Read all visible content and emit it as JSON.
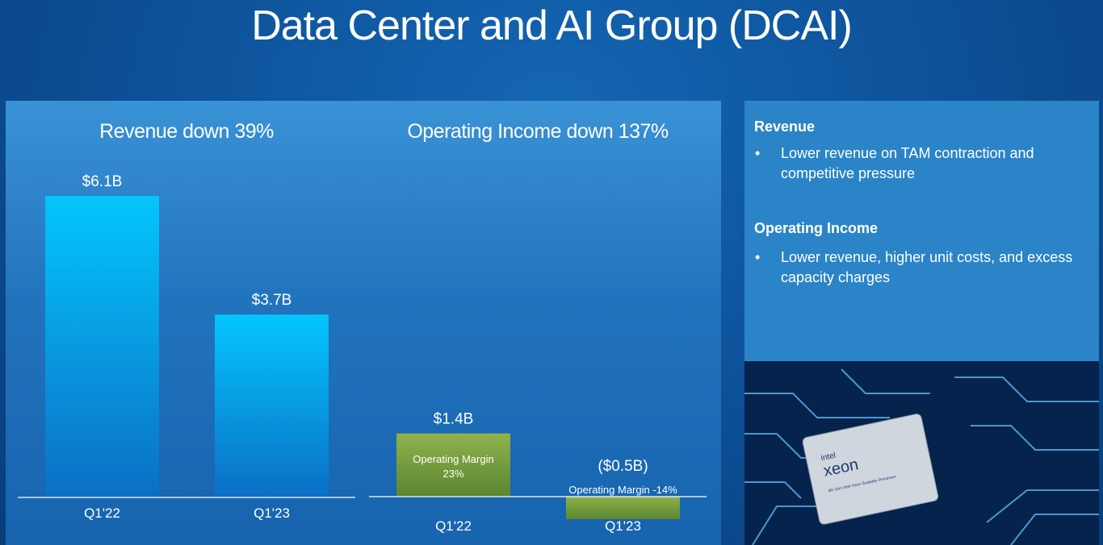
{
  "title": "Data Center and AI Group (DCAI)",
  "chart_data": [
    {
      "type": "bar",
      "title": "Revenue down 39%",
      "categories": [
        "Q1'22",
        "Q1'23"
      ],
      "values": [
        6.1,
        3.7
      ],
      "value_labels": [
        "$6.1B",
        "$3.7B"
      ],
      "color": "#04c6fc"
    },
    {
      "type": "bar",
      "title": "Operating Income down 137%",
      "categories": [
        "Q1'22",
        "Q1'23"
      ],
      "values": [
        1.4,
        -0.5
      ],
      "value_labels": [
        "$1.4B",
        "($0.5B)"
      ],
      "annotations": [
        "Operating Margin 23%",
        "Operating Margin -14%"
      ],
      "color": "#8fb24c"
    }
  ],
  "sidebar": [
    {
      "heading": "Revenue",
      "bullets": [
        "Lower revenue on TAM contraction and competitive pressure"
      ]
    },
    {
      "heading": "Operating Income",
      "bullets": [
        "Lower revenue, higher unit costs, and excess capacity charges"
      ]
    }
  ],
  "image": {
    "brand": "intel",
    "product": "xeon",
    "caption": "4th Gen Intel Xeon Scalable Processor"
  }
}
